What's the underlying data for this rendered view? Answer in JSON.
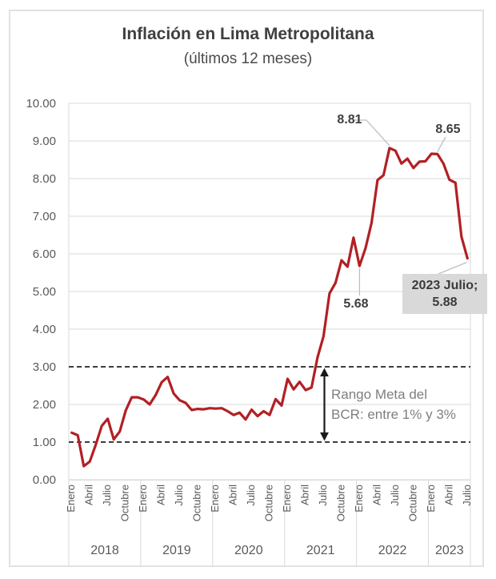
{
  "title": "Inflación en Lima Metropolitana",
  "subtitle": "(últimos 12 meses)",
  "annotations": {
    "peak_2022": {
      "label": "8.81",
      "point_index": 53
    },
    "peak_2023": {
      "label": "8.65",
      "point_index": 61
    },
    "dip_2022": {
      "label": "5.68",
      "point_index": 48
    },
    "last_point": {
      "line1": "2023 Julio;",
      "line2": "5.88",
      "point_index": 66
    },
    "target_range": {
      "line1": "Rango Meta del",
      "line2": "BCR: entre 1% y 3%",
      "lower": 1.0,
      "upper": 3.0
    }
  },
  "colors": {
    "line": "#b22024",
    "grid": "#d9d9d9",
    "dashed": "#222222",
    "arrow": "#1a1a1a",
    "leader": "#bfbfbf",
    "axis_text": "#595959",
    "annotation_text": "#3f3f3f",
    "label_box_bg": "#d9d9d9",
    "range_text": "#7f7f7f",
    "frame_border": "#e2e2e2"
  },
  "chart_data": {
    "type": "line",
    "title": "Inflación en Lima Metropolitana (últimos 12 meses)",
    "xlabel": "",
    "ylabel": "",
    "ylim": [
      0,
      10
    ],
    "grid": true,
    "legend": false,
    "y_ticks": [
      "10.00",
      "9.00",
      "8.00",
      "7.00",
      "6.00",
      "5.00",
      "4.00",
      "3.00",
      "2.00",
      "1.00",
      "0.00"
    ],
    "x_axis": {
      "years": [
        "2018",
        "2019",
        "2020",
        "2021",
        "2022",
        "2023"
      ],
      "tick_months": [
        "Enero",
        "Abril",
        "Julio",
        "Octubre"
      ],
      "tick_month_offsets": [
        0,
        3,
        6,
        9
      ],
      "months_in_last_year": 7
    },
    "reference_lines": [
      {
        "value": 3.0,
        "style": "dashed"
      },
      {
        "value": 1.0,
        "style": "dashed"
      }
    ],
    "series": [
      {
        "values": [
          1.25,
          1.18,
          0.36,
          0.48,
          0.93,
          1.43,
          1.62,
          1.07,
          1.28,
          1.84,
          2.19,
          2.19,
          2.13,
          2.0,
          2.25,
          2.59,
          2.73,
          2.29,
          2.11,
          2.04,
          1.85,
          1.88,
          1.87,
          1.9,
          1.89,
          1.9,
          1.82,
          1.72,
          1.78,
          1.6,
          1.86,
          1.69,
          1.82,
          1.72,
          2.14,
          1.97,
          2.68,
          2.4,
          2.6,
          2.38,
          2.45,
          3.25,
          3.81,
          4.95,
          5.23,
          5.83,
          5.66,
          6.43,
          5.68,
          6.15,
          6.82,
          7.96,
          8.09,
          8.81,
          8.74,
          8.4,
          8.53,
          8.28,
          8.45,
          8.46,
          8.66,
          8.65,
          8.4,
          7.97,
          7.89,
          6.46,
          5.88
        ]
      }
    ]
  }
}
